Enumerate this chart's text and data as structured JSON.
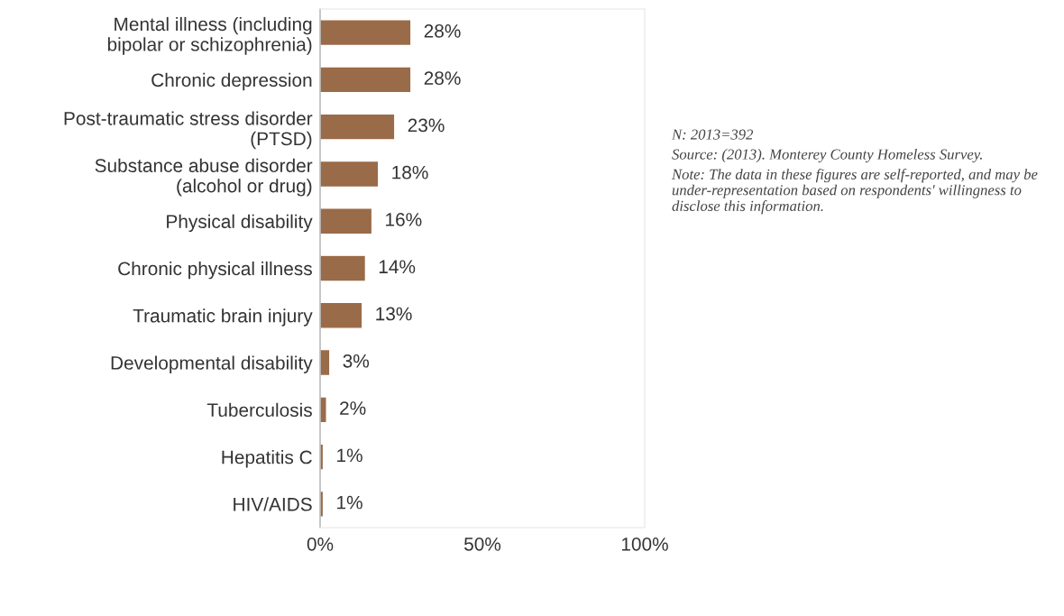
{
  "chart_data": {
    "type": "bar",
    "orientation": "horizontal",
    "categories": [
      "Mental illness (including\nbipolar or schizophrenia)",
      "Chronic depression",
      "Post-traumatic stress disorder\n(PTSD)",
      "Substance abuse disorder\n(alcohol or drug)",
      "Physical disability",
      "Chronic physical illness",
      "Traumatic brain injury",
      "Developmental disability",
      "Tuberculosis",
      "Hepatitis C",
      "HIV/AIDS"
    ],
    "values": [
      28,
      28,
      23,
      18,
      16,
      14,
      13,
      3,
      2,
      1,
      1
    ],
    "value_labels": [
      "28%",
      "28%",
      "23%",
      "18%",
      "16%",
      "14%",
      "13%",
      "3%",
      "2%",
      "1%",
      "1%"
    ],
    "color": "#9a6b48",
    "xlim": [
      0,
      100
    ],
    "xticks": [
      {
        "value": 0,
        "label": "0%"
      },
      {
        "value": 50,
        "label": "50%"
      },
      {
        "value": 100,
        "label": "100%"
      }
    ],
    "grid": false,
    "annotations": [
      "N: 2013=392",
      "Source: (2013). Monterey County Homeless Survey.",
      "Note: The data in these figures are self-reported, and may be under-representation based on respondents' willingness to disclose this information."
    ]
  }
}
